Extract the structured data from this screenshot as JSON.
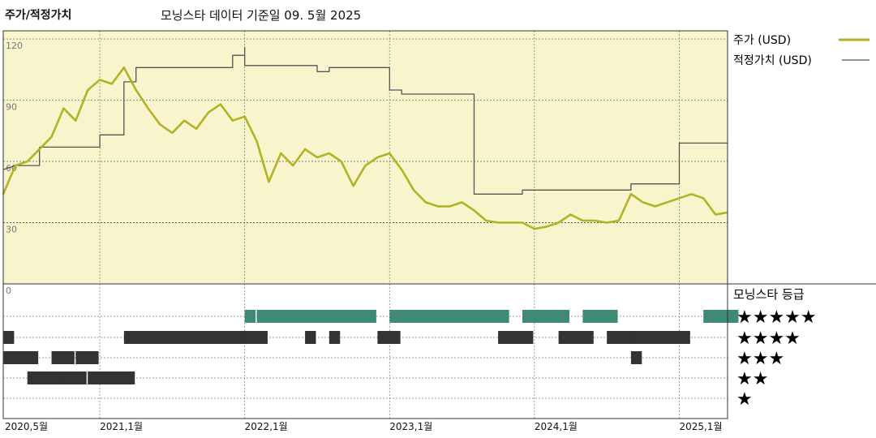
{
  "header": {
    "left_title": "주가/적정가치",
    "center_title": "모닝스타 데이터 기준일 09. 5월 2025"
  },
  "legend": {
    "price": "주가 (USD)",
    "fair_value": "적정가치 (USD)",
    "rating_title": "모닝스타 등급"
  },
  "colors": {
    "price_line": "#b2b226",
    "fair_value_line": "#555555",
    "plot_bg": "#f8f4cc",
    "five_star": "#3e8a74",
    "other_star": "#333333"
  },
  "star_labels": [
    "★★★★★",
    "★★★★",
    "★★★",
    "★★",
    "★"
  ],
  "chart_data": {
    "type": "line",
    "x_tick_labels": [
      "2020,5월",
      "2021,1월",
      "2022,1월",
      "2023,1월",
      "2024,1월",
      "2025,1월"
    ],
    "y_tick_labels": [
      "120",
      "90",
      "60",
      "30"
    ],
    "rating_axis_label": "0",
    "ylim": [
      0,
      124
    ],
    "x_range": [
      "2020-05",
      "2025-05"
    ],
    "grid": true,
    "legend_position": "right",
    "series": [
      {
        "name": "주가 (USD)",
        "points": [
          [
            "2020-05",
            44
          ],
          [
            "2020-06",
            58
          ],
          [
            "2020-07",
            60
          ],
          [
            "2020-08",
            66
          ],
          [
            "2020-09",
            72
          ],
          [
            "2020-10",
            86
          ],
          [
            "2020-11",
            80
          ],
          [
            "2020-12",
            95
          ],
          [
            "2021-01",
            100
          ],
          [
            "2021-02",
            98
          ],
          [
            "2021-03",
            106
          ],
          [
            "2021-04",
            95
          ],
          [
            "2021-05",
            86
          ],
          [
            "2021-06",
            78
          ],
          [
            "2021-07",
            74
          ],
          [
            "2021-08",
            80
          ],
          [
            "2021-09",
            76
          ],
          [
            "2021-10",
            84
          ],
          [
            "2021-11",
            88
          ],
          [
            "2021-12",
            80
          ],
          [
            "2022-01",
            82
          ],
          [
            "2022-02",
            70
          ],
          [
            "2022-03",
            50
          ],
          [
            "2022-04",
            64
          ],
          [
            "2022-05",
            58
          ],
          [
            "2022-06",
            66
          ],
          [
            "2022-07",
            62
          ],
          [
            "2022-08",
            64
          ],
          [
            "2022-09",
            60
          ],
          [
            "2022-10",
            48
          ],
          [
            "2022-11",
            58
          ],
          [
            "2022-12",
            62
          ],
          [
            "2023-01",
            64
          ],
          [
            "2023-02",
            56
          ],
          [
            "2023-03",
            46
          ],
          [
            "2023-04",
            40
          ],
          [
            "2023-05",
            38
          ],
          [
            "2023-06",
            38
          ],
          [
            "2023-07",
            40
          ],
          [
            "2023-08",
            36
          ],
          [
            "2023-09",
            31
          ],
          [
            "2023-10",
            30
          ],
          [
            "2023-11",
            30
          ],
          [
            "2023-12",
            30
          ],
          [
            "2024-01",
            27
          ],
          [
            "2024-02",
            28
          ],
          [
            "2024-03",
            30
          ],
          [
            "2024-04",
            34
          ],
          [
            "2024-05",
            31
          ],
          [
            "2024-06",
            31
          ],
          [
            "2024-07",
            30
          ],
          [
            "2024-08",
            31
          ],
          [
            "2024-09",
            44
          ],
          [
            "2024-10",
            40
          ],
          [
            "2024-11",
            38
          ],
          [
            "2024-12",
            40
          ],
          [
            "2025-01",
            42
          ],
          [
            "2025-02",
            44
          ],
          [
            "2025-03",
            42
          ],
          [
            "2025-04",
            34
          ],
          [
            "2025-05",
            35
          ]
        ]
      },
      {
        "name": "적정가치 (USD)",
        "points": [
          [
            "2020-05",
            56
          ],
          [
            "2020-06",
            58
          ],
          [
            "2020-08",
            58
          ],
          [
            "2020-08",
            67
          ],
          [
            "2021-01",
            67
          ],
          [
            "2021-01",
            73
          ],
          [
            "2021-03",
            73
          ],
          [
            "2021-03",
            99
          ],
          [
            "2021-04",
            99
          ],
          [
            "2021-04",
            106
          ],
          [
            "2021-12",
            106
          ],
          [
            "2021-12",
            112
          ],
          [
            "2022-01",
            112
          ],
          [
            "2022-01",
            116
          ],
          [
            "2022-01",
            116
          ],
          [
            "2022-01",
            107
          ],
          [
            "2022-07",
            107
          ],
          [
            "2022-07",
            104
          ],
          [
            "2022-08",
            104
          ],
          [
            "2022-08",
            106
          ],
          [
            "2023-01",
            106
          ],
          [
            "2023-01",
            95
          ],
          [
            "2023-02",
            95
          ],
          [
            "2023-02",
            93
          ],
          [
            "2023-08",
            93
          ],
          [
            "2023-08",
            44
          ],
          [
            "2023-12",
            44
          ],
          [
            "2023-12",
            46
          ],
          [
            "2024-09",
            46
          ],
          [
            "2024-09",
            49
          ],
          [
            "2025-01",
            49
          ],
          [
            "2025-01",
            69
          ],
          [
            "2025-05",
            69
          ]
        ]
      }
    ],
    "ratings": [
      {
        "start": "2020-05",
        "end": "2020-05",
        "stars": 4
      },
      {
        "start": "2020-05",
        "end": "2020-07",
        "stars": 3
      },
      {
        "start": "2020-07",
        "end": "2020-10",
        "stars": 2
      },
      {
        "start": "2020-09",
        "end": "2020-10",
        "stars": 3
      },
      {
        "start": "2020-10",
        "end": "2020-11",
        "stars": 2
      },
      {
        "start": "2020-11",
        "end": "2020-12",
        "stars": 3
      },
      {
        "start": "2020-12",
        "end": "2021-03",
        "stars": 2
      },
      {
        "start": "2021-03",
        "end": "2022-01",
        "stars": 4
      },
      {
        "start": "2022-01",
        "end": "2022-01",
        "stars": 5
      },
      {
        "start": "2022-01",
        "end": "2022-02",
        "stars": 4
      },
      {
        "start": "2022-02",
        "end": "2022-11",
        "stars": 5
      },
      {
        "start": "2022-06",
        "end": "2022-06",
        "stars": 4
      },
      {
        "start": "2022-08",
        "end": "2022-08",
        "stars": 4
      },
      {
        "start": "2022-12",
        "end": "2023-01",
        "stars": 4
      },
      {
        "start": "2023-01",
        "end": "2023-10",
        "stars": 5
      },
      {
        "start": "2023-10",
        "end": "2023-10",
        "stars": 4
      },
      {
        "start": "2023-10",
        "end": "2023-10",
        "stars": 5
      },
      {
        "start": "2023-10",
        "end": "2023-12",
        "stars": 4
      },
      {
        "start": "2023-12",
        "end": "2024-03",
        "stars": 5
      },
      {
        "start": "2024-03",
        "end": "2024-05",
        "stars": 4
      },
      {
        "start": "2024-05",
        "end": "2024-07",
        "stars": 5
      },
      {
        "start": "2024-07",
        "end": "2024-09",
        "stars": 4
      },
      {
        "start": "2024-09",
        "end": "2024-09",
        "stars": 3
      },
      {
        "start": "2024-09",
        "end": "2025-01",
        "stars": 4
      },
      {
        "start": "2025-03",
        "end": "2025-05",
        "stars": 5
      }
    ]
  }
}
